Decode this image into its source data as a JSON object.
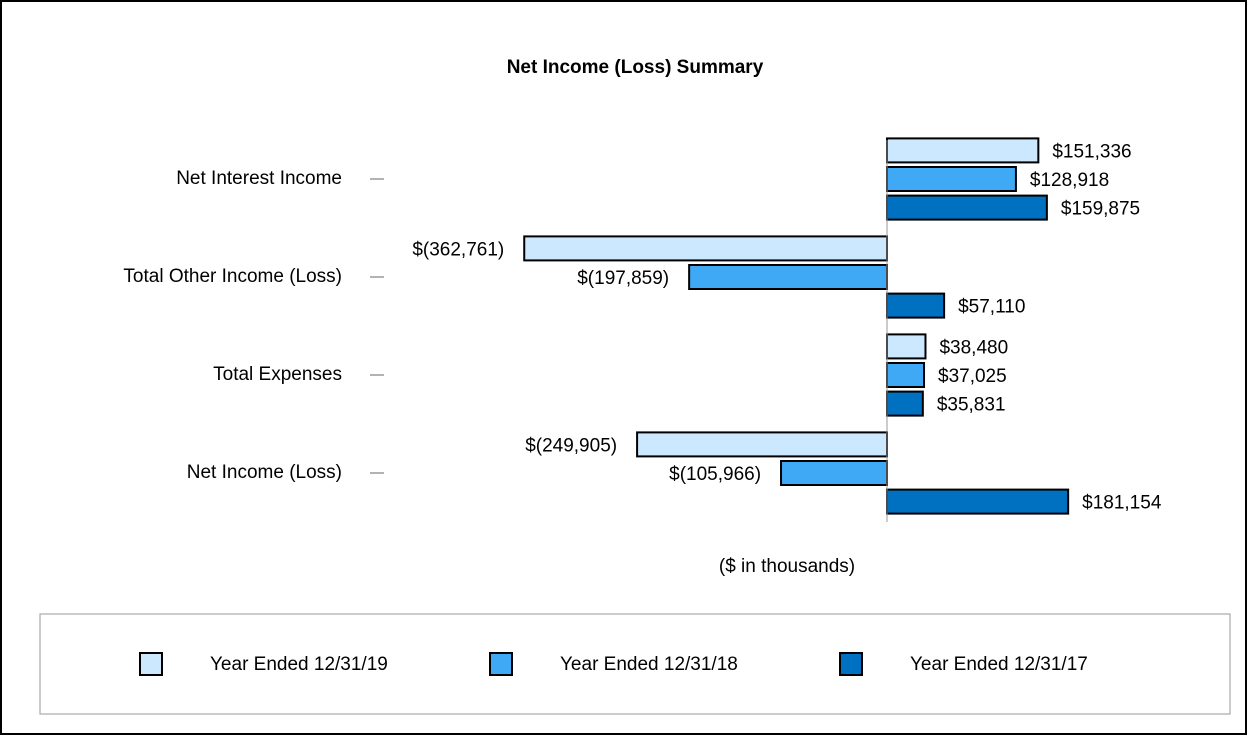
{
  "chart_data": {
    "type": "hbar",
    "title": "Net Income (Loss) Summary",
    "x_label": "($ in thousands)",
    "categories": [
      "Net Interest Income",
      "Total Other Income (Loss)",
      "Total Expenses",
      "Net Income (Loss)"
    ],
    "series": [
      {
        "name": "Year Ended 12/31/19",
        "color": "#cce8ff",
        "values": [
          151336,
          -362761,
          38480,
          -249905
        ],
        "value_labels": [
          "$151,336",
          "$(362,761)",
          "$38,480",
          "$(249,905)"
        ]
      },
      {
        "name": "Year Ended 12/31/18",
        "color": "#3fa9f5",
        "values": [
          128918,
          -197859,
          37025,
          -105966
        ],
        "value_labels": [
          "$128,918",
          "$(197,859)",
          "$37,025",
          "$(105,966)"
        ]
      },
      {
        "name": "Year Ended 12/31/17",
        "color": "#0070c0",
        "values": [
          159875,
          57110,
          35831,
          181154
        ],
        "value_labels": [
          "$159,875",
          "$57,110",
          "$35,831",
          "$181,154"
        ]
      }
    ],
    "xlim": [
      -400000,
      250000
    ],
    "legend": "bottom"
  }
}
